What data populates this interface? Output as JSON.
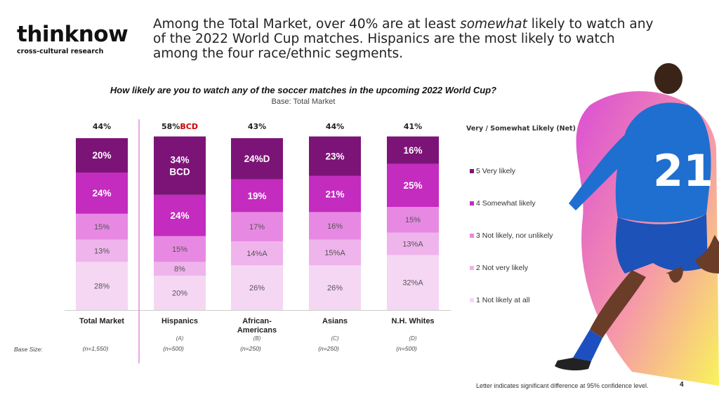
{
  "logo": {
    "name": "thinknow",
    "tagline": "cross-cultural research"
  },
  "headline": {
    "part1": "Among the Total Market, over 40% are at least ",
    "emphasis": "somewhat",
    "part2": " likely to watch any of the 2022 World Cup matches. Hispanics are the most likely to watch among the four race/ethnic segments."
  },
  "question": "How likely are you to watch any of the soccer matches in the upcoming 2022 World Cup?",
  "base_note": "Base: Total Market",
  "base_size_label": "Base Size:",
  "footnote": "Letter indicates significant difference at 95% confidence level.",
  "page_number": "4",
  "chart_data": {
    "type": "bar",
    "stacked": true,
    "categories": [
      "Total Market",
      "Hispanics",
      "African-Americans",
      "Asians",
      "N.H. Whites"
    ],
    "category_letters": [
      "",
      "(A)",
      "(B)",
      "(C)",
      "(D)"
    ],
    "base_sizes": [
      "(n=1,550)",
      "(n=500)",
      "(n=250)",
      "(n=250)",
      "(n=500)"
    ],
    "net_title": "Very / Somewhat Likely (Net)",
    "net_values": [
      44,
      58,
      43,
      44,
      41
    ],
    "net_labels": [
      "44%",
      "58%",
      "43%",
      "44%",
      "41%"
    ],
    "net_sig": [
      "",
      "BCD",
      "",
      "",
      ""
    ],
    "series": [
      {
        "name": "1 Not likely at all",
        "color": "#f5d7f3",
        "values": [
          28,
          20,
          26,
          26,
          32
        ],
        "labels": [
          "28%",
          "20%",
          "26%",
          "26%",
          "32%A"
        ]
      },
      {
        "name": "2 Not very likely",
        "color": "#efb4ec",
        "values": [
          13,
          8,
          14,
          15,
          13
        ],
        "labels": [
          "13%",
          "8%",
          "14%A",
          "15%A",
          "13%A"
        ]
      },
      {
        "name": "3 Not likely, nor unlikely",
        "color": "#e789e3",
        "values": [
          15,
          15,
          17,
          16,
          15
        ],
        "labels": [
          "15%",
          "15%",
          "17%",
          "16%",
          "15%"
        ]
      },
      {
        "name": "4 Somewhat likely",
        "color": "#c42bbf",
        "values": [
          24,
          24,
          19,
          21,
          25
        ],
        "labels": [
          "24%",
          "24%",
          "19%",
          "21%",
          "25%"
        ]
      },
      {
        "name": "5 Very likely",
        "color": "#7c1478",
        "values": [
          20,
          34,
          24,
          23,
          16
        ],
        "labels": [
          "20%",
          "34%\nBCD",
          "24%D",
          "23%",
          "16%"
        ]
      }
    ],
    "legend_order": [
      "5 Very likely",
      "4 Somewhat likely",
      "3 Not likely, nor unlikely",
      "2 Not very likely",
      "1 Not likely at all"
    ],
    "sig_color": "#cc0000",
    "accent_line_color": "#e070d8"
  }
}
